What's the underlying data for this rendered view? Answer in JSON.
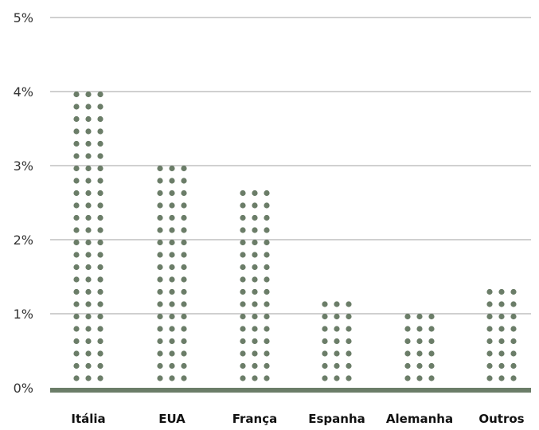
{
  "chart_data": {
    "type": "bar",
    "style": "dot-column",
    "categories": [
      "Itália",
      "EUA",
      "França",
      "Espanha",
      "Alemanha",
      "Outros"
    ],
    "values": [
      4.1,
      3.1,
      2.75,
      1.15,
      1.0,
      1.3
    ],
    "title": "",
    "xlabel": "",
    "ylabel": "",
    "ylim": [
      0,
      5
    ],
    "yticks": [
      "0%",
      "1%",
      "2%",
      "3%",
      "4%",
      "5%"
    ],
    "grid": true,
    "legend": "none"
  },
  "colors": {
    "dot": "#6b7d68",
    "baseline": "#6b7d68",
    "grid": "#b3b3b3",
    "text": "#333333"
  }
}
